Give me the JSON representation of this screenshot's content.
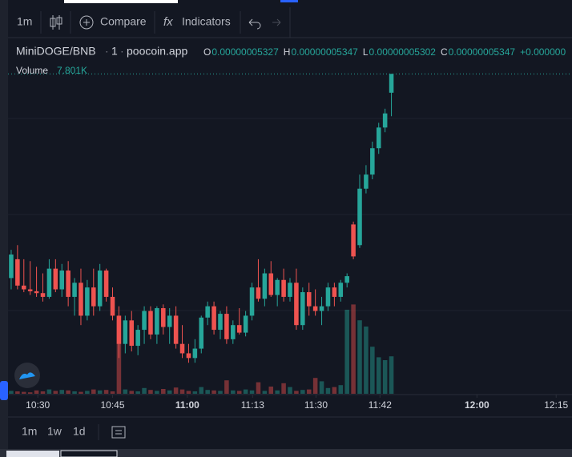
{
  "toolbar": {
    "interval": "1m",
    "compare": "Compare",
    "indicators": "Indicators"
  },
  "header": {
    "symbol": "MiniDOGE/BNB",
    "interval": "1",
    "source": "poocoin.app",
    "ohlc": [
      {
        "key": "O",
        "value": "0.00000005327"
      },
      {
        "key": "H",
        "value": "0.00000005347"
      },
      {
        "key": "L",
        "value": "0.00000005302"
      },
      {
        "key": "C",
        "value": "0.00000005347"
      }
    ],
    "change": "+0.000000"
  },
  "footer": {
    "ranges": [
      "1m",
      "1w",
      "1d"
    ]
  },
  "chart_data": {
    "type": "candlestick",
    "up_color": "#26a69a",
    "down_color": "#ef5350",
    "open": [
      5.13e-08,
      5.15e-08,
      5.122e-08,
      5.118e-08,
      5.116e-08,
      5.114e-08,
      5.11e-08,
      5.14e-08,
      5.118e-08,
      5.138e-08,
      5.11e-08,
      5.125e-08,
      5.09e-08,
      5.12e-08,
      5.1e-08,
      5.138e-08,
      5.11e-08,
      5.09e-08,
      5.06e-08,
      5.085e-08,
      5.058e-08,
      5.075e-08,
      5.095e-08,
      5.07e-08,
      5.098e-08,
      5.078e-08,
      5.09e-08,
      5.06e-08,
      5.05e-08,
      5.045e-08,
      5.055e-08,
      5.088e-08,
      5.1e-08,
      5.075e-08,
      5.092e-08,
      5.065e-08,
      5.08e-08,
      5.072e-08,
      5.09e-08,
      5.12e-08,
      5.108e-08,
      5.135e-08,
      5.112e-08,
      5.128e-08,
      5.11e-08,
      5.125e-08,
      5.08e-08,
      5.115e-08,
      5.1e-08,
      5.095e-08,
      5.1e-08,
      5.12e-08,
      5.11e-08,
      5.125e-08,
      5.187e-08,
      5.165e-08,
      5.225e-08,
      5.24e-08,
      5.268e-08,
      5.29e-08,
      5.327e-08
    ],
    "high": [
      5.16e-08,
      5.165e-08,
      5.15e-08,
      5.148e-08,
      5.142e-08,
      5.135e-08,
      5.15e-08,
      5.15e-08,
      5.145e-08,
      5.148e-08,
      5.13e-08,
      5.14e-08,
      5.128e-08,
      5.14e-08,
      5.145e-08,
      5.14e-08,
      5.12e-08,
      5.1e-08,
      5.09e-08,
      5.095e-08,
      5.08e-08,
      5.1e-08,
      5.1e-08,
      5.1e-08,
      5.102e-08,
      5.098e-08,
      5.1e-08,
      5.08e-08,
      5.06e-08,
      5.065e-08,
      5.09e-08,
      5.105e-08,
      5.105e-08,
      5.095e-08,
      5.1e-08,
      5.085e-08,
      5.098e-08,
      5.095e-08,
      5.125e-08,
      5.15e-08,
      5.14e-08,
      5.148e-08,
      5.13e-08,
      5.14e-08,
      5.13e-08,
      5.14e-08,
      5.12e-08,
      5.125e-08,
      5.118e-08,
      5.11e-08,
      5.125e-08,
      5.125e-08,
      5.128e-08,
      5.135e-08,
      5.19e-08,
      5.24e-08,
      5.25e-08,
      5.275e-08,
      5.295e-08,
      5.31e-08,
      5.347e-08
    ],
    "low": [
      5.118e-08,
      5.118e-08,
      5.115e-08,
      5.112e-08,
      5.11e-08,
      5.105e-08,
      5.108e-08,
      5.115e-08,
      5.11e-08,
      5.1e-08,
      5.09e-08,
      5.08e-08,
      5.085e-08,
      5.09e-08,
      5.095e-08,
      5.105e-08,
      5.085e-08,
      5.045e-08,
      5.05e-08,
      5.052e-08,
      5.048e-08,
      5.06e-08,
      5.065e-08,
      5.06e-08,
      5.07e-08,
      5.06e-08,
      5.055e-08,
      5.045e-08,
      5.04e-08,
      5.04e-08,
      5.05e-08,
      5.08e-08,
      5.07e-08,
      5.065e-08,
      5.06e-08,
      5.06e-08,
      5.07e-08,
      5.068e-08,
      5.085e-08,
      5.105e-08,
      5.1e-08,
      5.11e-08,
      5.1e-08,
      5.105e-08,
      5.105e-08,
      5.075e-08,
      5.075e-08,
      5.09e-08,
      5.09e-08,
      5.08e-08,
      5.095e-08,
      5.1e-08,
      5.105e-08,
      5.12e-08,
      5.15e-08,
      5.162e-08,
      5.22e-08,
      5.235e-08,
      5.262e-08,
      5.285e-08,
      5.302e-08
    ],
    "close": [
      5.155e-08,
      5.122e-08,
      5.118e-08,
      5.116e-08,
      5.114e-08,
      5.11e-08,
      5.14e-08,
      5.118e-08,
      5.138e-08,
      5.11e-08,
      5.125e-08,
      5.09e-08,
      5.12e-08,
      5.1e-08,
      5.138e-08,
      5.11e-08,
      5.09e-08,
      5.06e-08,
      5.085e-08,
      5.058e-08,
      5.075e-08,
      5.095e-08,
      5.07e-08,
      5.098e-08,
      5.078e-08,
      5.09e-08,
      5.06e-08,
      5.05e-08,
      5.045e-08,
      5.055e-08,
      5.088e-08,
      5.1e-08,
      5.075e-08,
      5.092e-08,
      5.065e-08,
      5.08e-08,
      5.072e-08,
      5.09e-08,
      5.12e-08,
      5.108e-08,
      5.135e-08,
      5.112e-08,
      5.128e-08,
      5.11e-08,
      5.125e-08,
      5.08e-08,
      5.115e-08,
      5.1e-08,
      5.095e-08,
      5.1e-08,
      5.12e-08,
      5.11e-08,
      5.125e-08,
      5.132e-08,
      5.153e-08,
      5.225e-08,
      5.24e-08,
      5.268e-08,
      5.29e-08,
      5.305e-08,
      5.347e-08
    ],
    "volume_title": "Volume",
    "volume": [
      600,
      500,
      400,
      300,
      700,
      500,
      900,
      600,
      800,
      700,
      500,
      400,
      600,
      900,
      700,
      800,
      500,
      15300,
      900,
      600,
      500,
      1200,
      800,
      600,
      1000,
      700,
      1300,
      900,
      600,
      500,
      1400,
      800,
      700,
      600,
      2800,
      700,
      600,
      900,
      700,
      2400,
      600,
      1500,
      700,
      2200,
      1400,
      600,
      800,
      900,
      3300,
      2600,
      1200,
      1400,
      1800,
      17500,
      18600,
      15300,
      14000,
      9800,
      7600,
      7000,
      7801
    ],
    "volume_value_label": "7.801K",
    "ylim": [
      5.007e-08,
      5.366e-08
    ],
    "y2lim": [
      0,
      20000
    ],
    "xlim": [
      -0.5,
      88.5
    ],
    "xticks": [
      {
        "value": 4.2,
        "label": "10:30"
      },
      {
        "value": 16,
        "label": "10:45"
      },
      {
        "value": 27.8,
        "label": "11:00"
      },
      {
        "value": 38.1,
        "label": "11:13"
      },
      {
        "value": 48.1,
        "label": "11:30"
      },
      {
        "value": 58.2,
        "label": "11:42"
      },
      {
        "value": 73.5,
        "label": "12:00"
      },
      {
        "value": 86,
        "label": "12:15"
      }
    ]
  }
}
